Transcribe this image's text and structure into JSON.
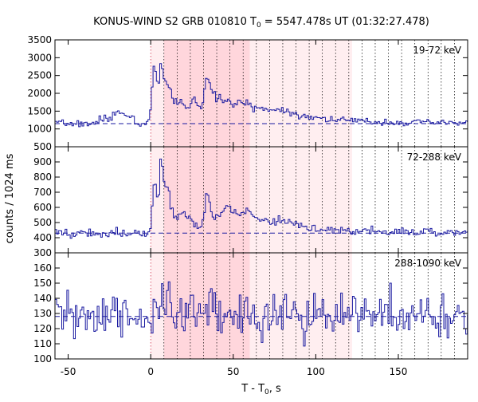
{
  "title": {
    "prefix": "KONUS-WIND S2 GRB 010810 T",
    "sub": "0",
    "suffix": " = 5547.478s UT (01:32:27.478)"
  },
  "xlabel": {
    "main": "T - T",
    "sub": "0",
    "tail": ", s"
  },
  "ylabel": "counts / 1024 ms",
  "colors": {
    "series": "#1a1aa0",
    "region_dark": "#ffd6dc",
    "region_light": "#ffeef0",
    "marker_line": "#000000",
    "trigger_line": "#c8102e"
  },
  "chart_data": {
    "type": "line",
    "xlim": [
      -58,
      192
    ],
    "x_ticks": [
      -50,
      0,
      50,
      100,
      150
    ],
    "shaded_regions": [
      {
        "x0": 0,
        "x1": 122,
        "shade": "light"
      },
      {
        "x0": 8,
        "x1": 60,
        "shade": "dark"
      }
    ],
    "marker_lines": [
      0,
      8,
      16,
      24,
      32,
      40,
      48,
      56,
      64,
      72,
      80,
      88,
      96,
      104,
      112,
      120,
      128,
      136,
      144,
      152,
      160,
      168,
      176,
      184
    ],
    "panels": [
      {
        "label": "19-72 keV",
        "ylim": [
          500,
          3500
        ],
        "yticks": [
          500,
          1000,
          1500,
          2000,
          2500,
          3000,
          3500
        ],
        "background": 1150,
        "series": {
          "x_start": -58,
          "x_step": 1.024,
          "seed": 7,
          "noise_sd": 45,
          "base": 1150,
          "pre": [
            {
              "x0": -32,
              "x1": -24,
              "v": 1300
            },
            {
              "x0": -24,
              "x1": -18,
              "v": 1450
            },
            {
              "x0": -18,
              "x1": -10,
              "v": 1350
            }
          ],
          "peaks": [
            {
              "c": 2,
              "w": 3,
              "a": 1450
            },
            {
              "c": 6,
              "w": 1.6,
              "a": 1100
            },
            {
              "c": 10,
              "w": 4,
              "a": 700
            },
            {
              "c": 18,
              "w": 6,
              "a": 350
            },
            {
              "c": 26,
              "w": 3,
              "a": 550
            },
            {
              "c": 34,
              "w": 3.5,
              "a": 1150
            },
            {
              "c": 44,
              "w": 8,
              "a": 500
            },
            {
              "c": 58,
              "w": 12,
              "a": 350
            },
            {
              "c": 80,
              "w": 22,
              "a": 250
            }
          ],
          "tail_amp": 180,
          "tail_tau": 70
        }
      },
      {
        "label": "72-288 keV",
        "ylim": [
          300,
          1000
        ],
        "yticks": [
          300,
          400,
          500,
          600,
          700,
          800,
          900
        ],
        "background": 430,
        "series": {
          "x_start": -58,
          "x_step": 1.024,
          "seed": 19,
          "noise_sd": 14,
          "base": 430,
          "pre": [],
          "peaks": [
            {
              "c": 2,
              "w": 2.5,
              "a": 340
            },
            {
              "c": 6,
              "w": 1.6,
              "a": 420
            },
            {
              "c": 10,
              "w": 3.5,
              "a": 200
            },
            {
              "c": 20,
              "w": 5,
              "a": 90
            },
            {
              "c": 34,
              "w": 3,
              "a": 260
            },
            {
              "c": 46,
              "w": 6,
              "a": 140
            },
            {
              "c": 58,
              "w": 10,
              "a": 90
            },
            {
              "c": 80,
              "w": 20,
              "a": 55
            }
          ],
          "tail_amp": 40,
          "tail_tau": 60
        }
      },
      {
        "label": "288-1090 keV",
        "ylim": [
          100,
          170
        ],
        "yticks": [
          100,
          110,
          120,
          130,
          140,
          150,
          160
        ],
        "background": 128,
        "series": {
          "x_start": -58,
          "x_step": 1.024,
          "seed": 31,
          "noise_sd": 8,
          "base": 128,
          "pre": [],
          "peaks": [
            {
              "c": 6,
              "w": 3,
              "a": 12
            },
            {
              "c": 34,
              "w": 4,
              "a": 8
            },
            {
              "c": 78,
              "w": 4,
              "a": 10
            }
          ],
          "tail_amp": 0,
          "tail_tau": 50
        }
      }
    ]
  }
}
